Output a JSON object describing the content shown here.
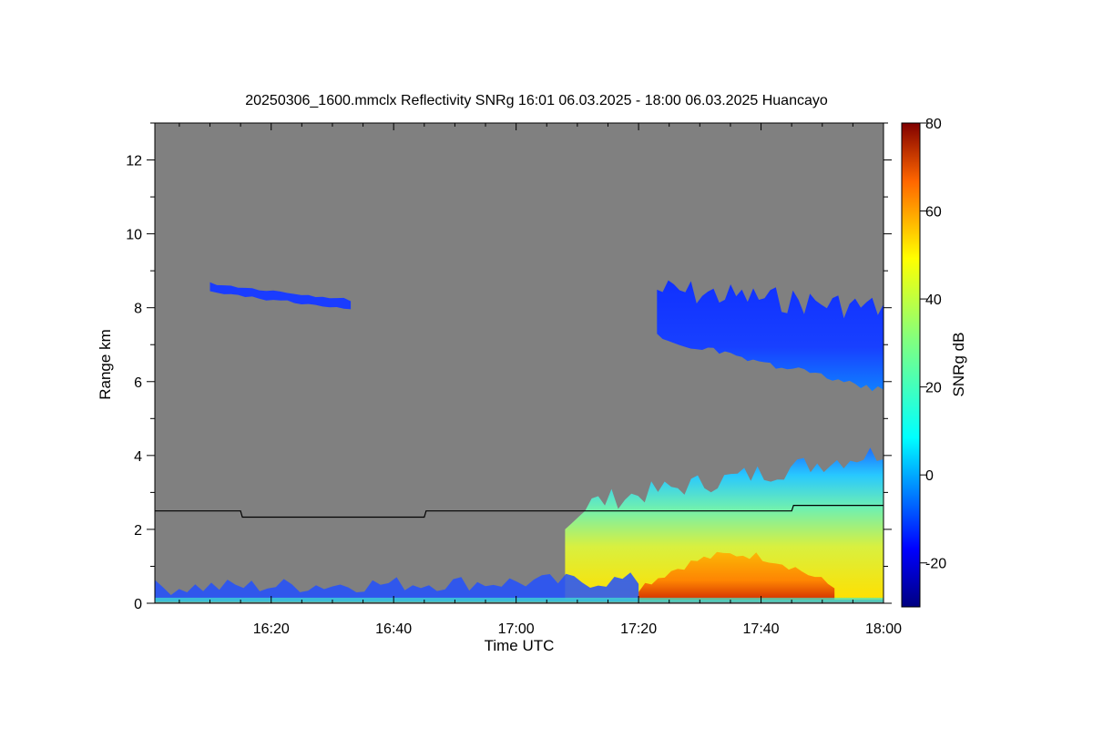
{
  "chart_data": {
    "type": "heatmap",
    "title": "20250306_1600.mmclx Reflectivity SNRg   16:01 06.03.2025 - 18:00 06.03.2025 Huancayo",
    "xlabel": "Time UTC",
    "ylabel": "Range km",
    "xticks": [
      {
        "label": "16:20",
        "min": 80
      },
      {
        "label": "16:40",
        "min": 100
      },
      {
        "label": "17:00",
        "min": 120
      },
      {
        "label": "17:20",
        "min": 140
      },
      {
        "label": "17:40",
        "min": 160
      },
      {
        "label": "18:00",
        "min": 180
      }
    ],
    "xlim_min": [
      61,
      180
    ],
    "yticks": [
      0,
      2,
      4,
      6,
      8,
      10,
      12
    ],
    "ylim": [
      0,
      13
    ],
    "background_color": "#808080",
    "colorbar": {
      "label": "SNRg dB",
      "range": [
        -30,
        80
      ],
      "ticks": [
        -20,
        0,
        20,
        40,
        60,
        80
      ]
    },
    "cloud_regions": [
      {
        "name": "upper-cloud",
        "t_start_min": 143,
        "t_end_min": 180,
        "base_km": 5.8,
        "top_km": 9.0,
        "snr_db": -18
      },
      {
        "name": "lower-convective-cloud",
        "t_start_min": 128,
        "t_end_min": 180,
        "base_km": 0.1,
        "top_km": 4.3,
        "snr_db": 30
      },
      {
        "name": "core",
        "t_start_min": 140,
        "t_end_min": 172,
        "base_km": 0.1,
        "top_km": 1.3,
        "snr_db": 52
      },
      {
        "name": "thin-layer-8.5km",
        "t_start_min": 70,
        "t_end_min": 93,
        "base_km": 8.0,
        "top_km": 8.7,
        "snr_db": -22
      },
      {
        "name": "ground-clutter",
        "t_start_min": 61,
        "t_end_min": 140,
        "base_km": 0.05,
        "top_km": 0.8,
        "snr_db": -15
      }
    ],
    "overlay_line": {
      "name": "black-line",
      "points": [
        [
          61,
          2.5
        ],
        [
          75,
          2.5
        ],
        [
          75.3,
          2.33
        ],
        [
          105,
          2.33
        ],
        [
          105.3,
          2.5
        ],
        [
          165,
          2.5
        ],
        [
          165.3,
          2.65
        ],
        [
          180,
          2.65
        ]
      ]
    }
  }
}
